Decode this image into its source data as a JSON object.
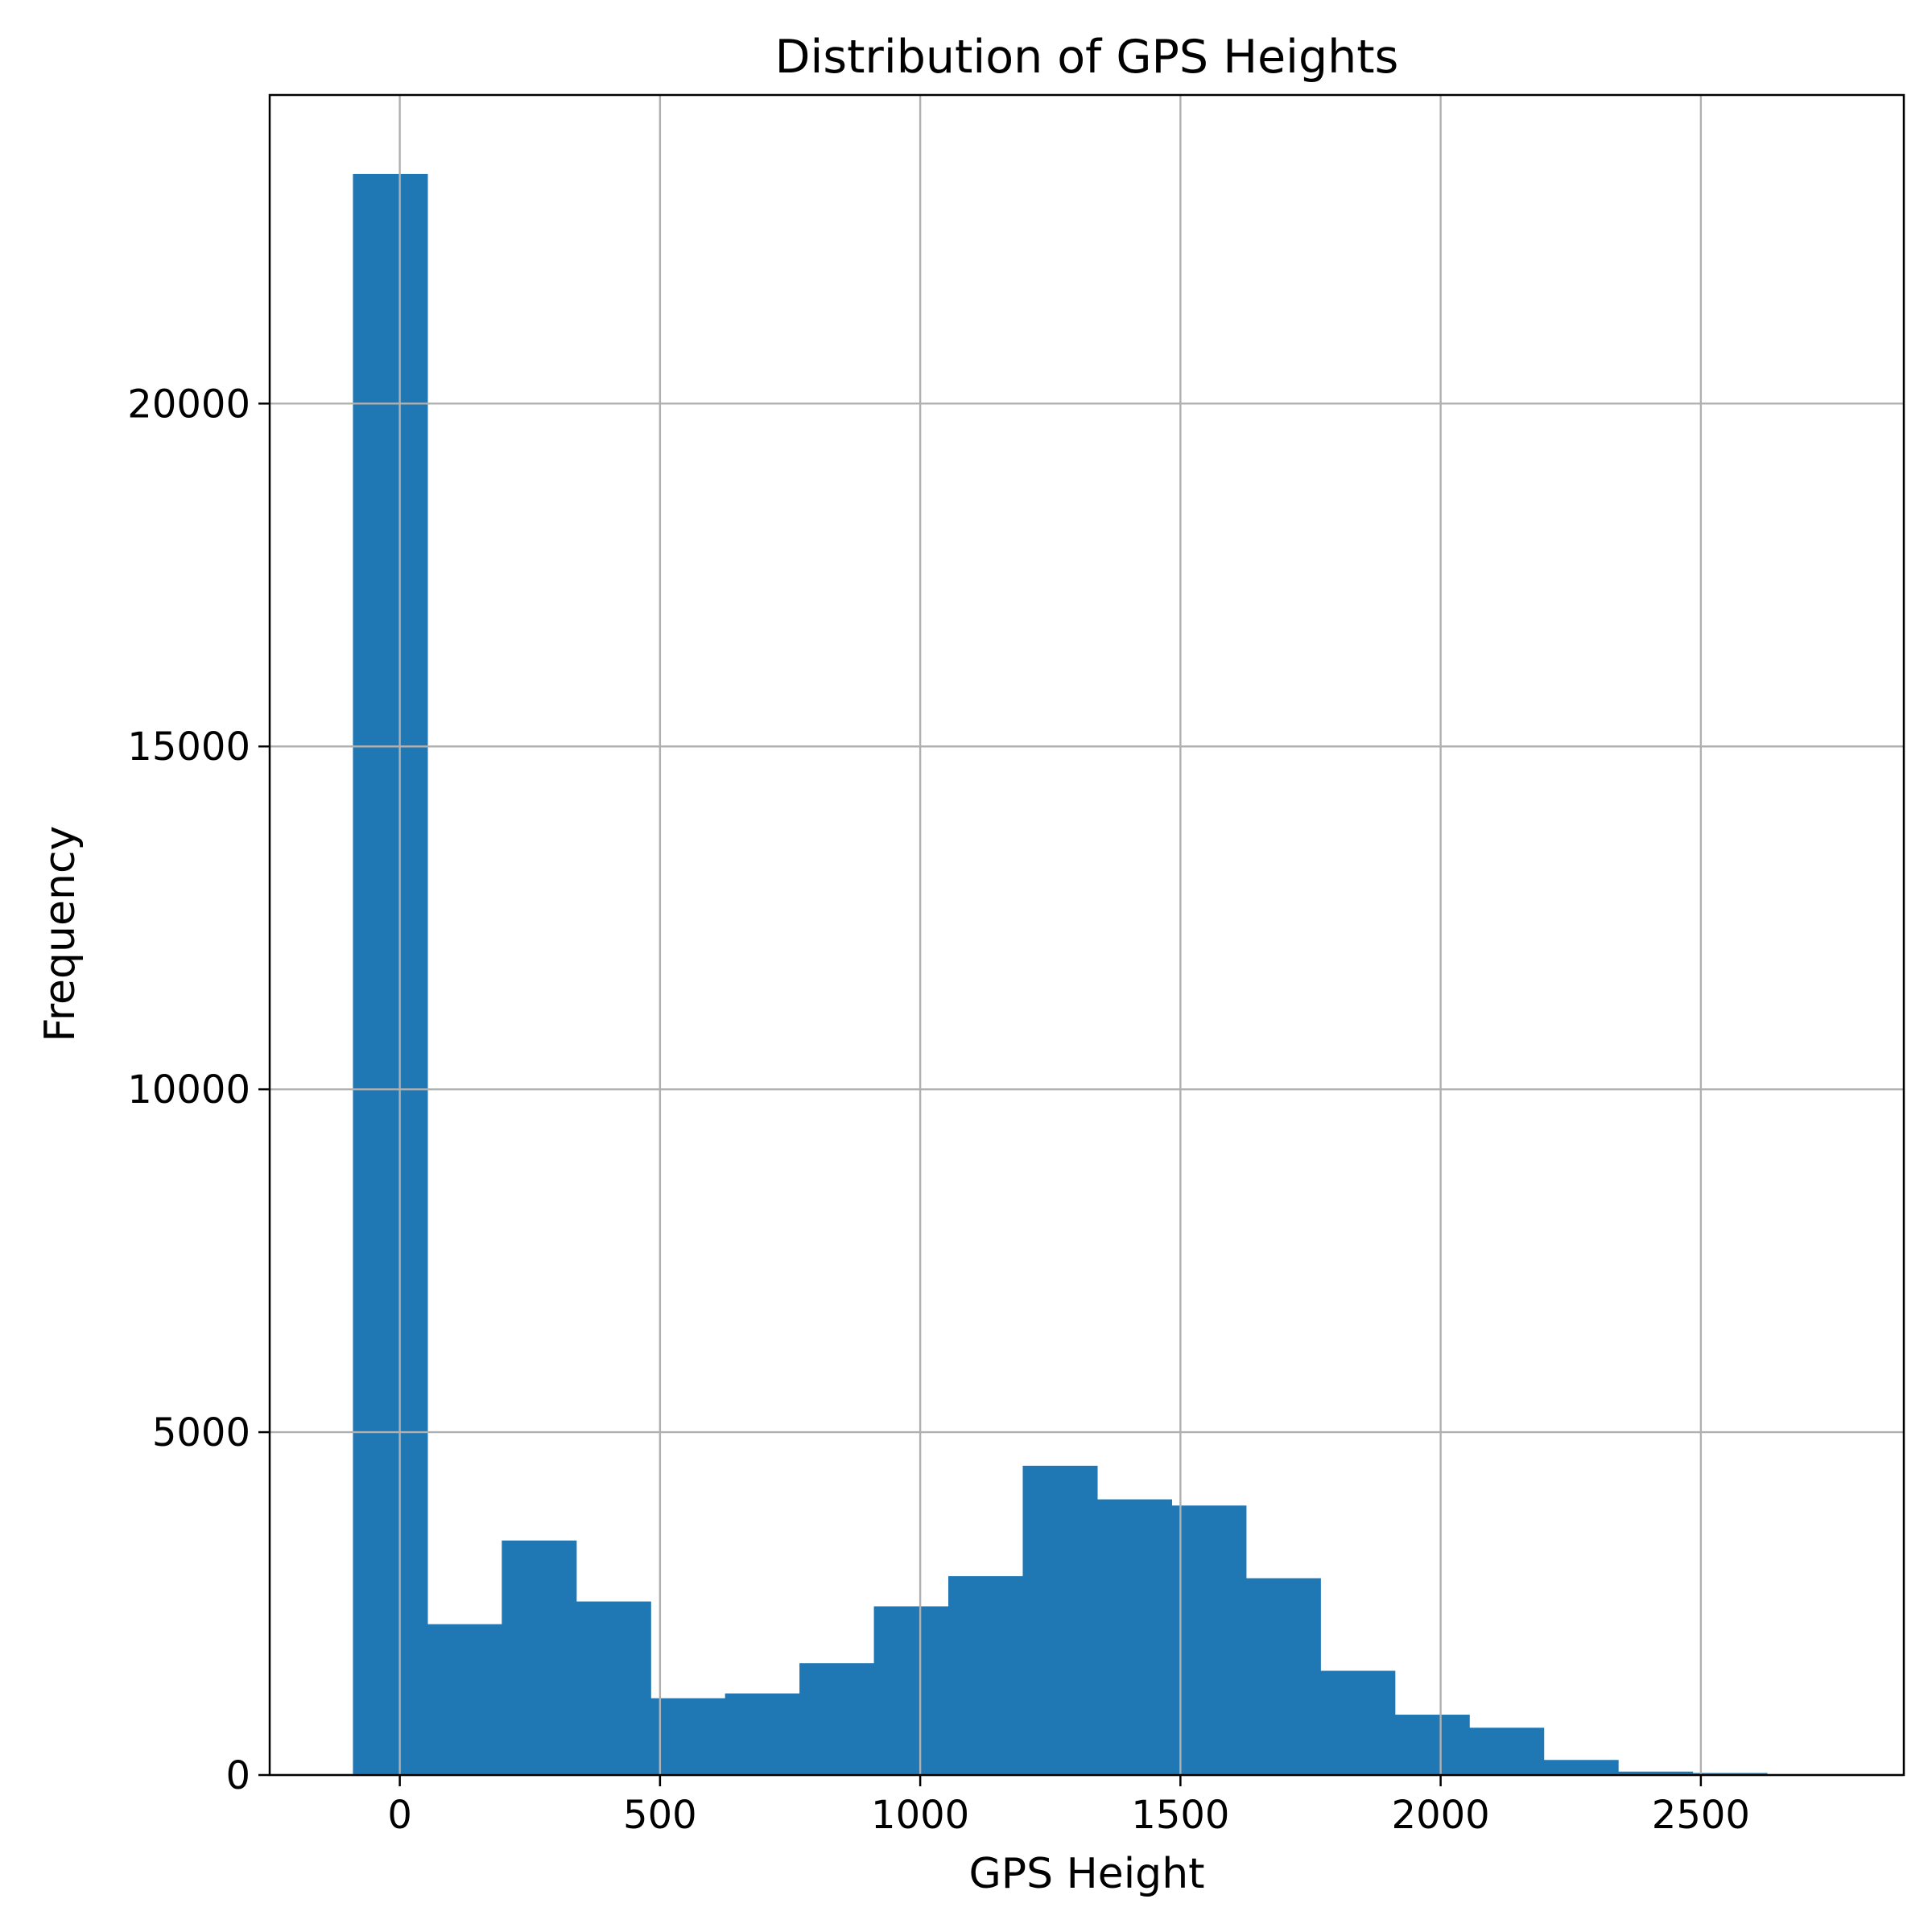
{
  "chart_data": {
    "type": "histogram",
    "title": "Distribution of GPS Heights",
    "xlabel": "GPS Height",
    "ylabel": "Frequency",
    "xlim": [
      -250,
      2890
    ],
    "ylim": [
      0,
      24500
    ],
    "xticks": [
      0,
      500,
      1000,
      1500,
      2000,
      2500
    ],
    "yticks": [
      0,
      5000,
      10000,
      15000,
      20000
    ],
    "grid": true,
    "bar_color": "#1f77b4",
    "bins": [
      {
        "x0": -90,
        "x1": 53,
        "count": 23350
      },
      {
        "x0": 53,
        "x1": 196,
        "count": 2200
      },
      {
        "x0": 196,
        "x1": 339,
        "count": 3420
      },
      {
        "x0": 339,
        "x1": 482,
        "count": 2530
      },
      {
        "x0": 482,
        "x1": 625,
        "count": 1120
      },
      {
        "x0": 625,
        "x1": 768,
        "count": 1190
      },
      {
        "x0": 768,
        "x1": 911,
        "count": 1630
      },
      {
        "x0": 911,
        "x1": 1054,
        "count": 2460
      },
      {
        "x0": 1054,
        "x1": 1197,
        "count": 2900
      },
      {
        "x0": 1197,
        "x1": 1340,
        "count": 4510
      },
      {
        "x0": 1340,
        "x1": 1483,
        "count": 4020
      },
      {
        "x0": 1483,
        "x1": 1626,
        "count": 3930
      },
      {
        "x0": 1626,
        "x1": 1769,
        "count": 2870
      },
      {
        "x0": 1769,
        "x1": 1912,
        "count": 1520
      },
      {
        "x0": 1912,
        "x1": 2055,
        "count": 880
      },
      {
        "x0": 2055,
        "x1": 2198,
        "count": 690
      },
      {
        "x0": 2198,
        "x1": 2341,
        "count": 220
      },
      {
        "x0": 2341,
        "x1": 2484,
        "count": 50
      },
      {
        "x0": 2484,
        "x1": 2627,
        "count": 30
      }
    ]
  }
}
